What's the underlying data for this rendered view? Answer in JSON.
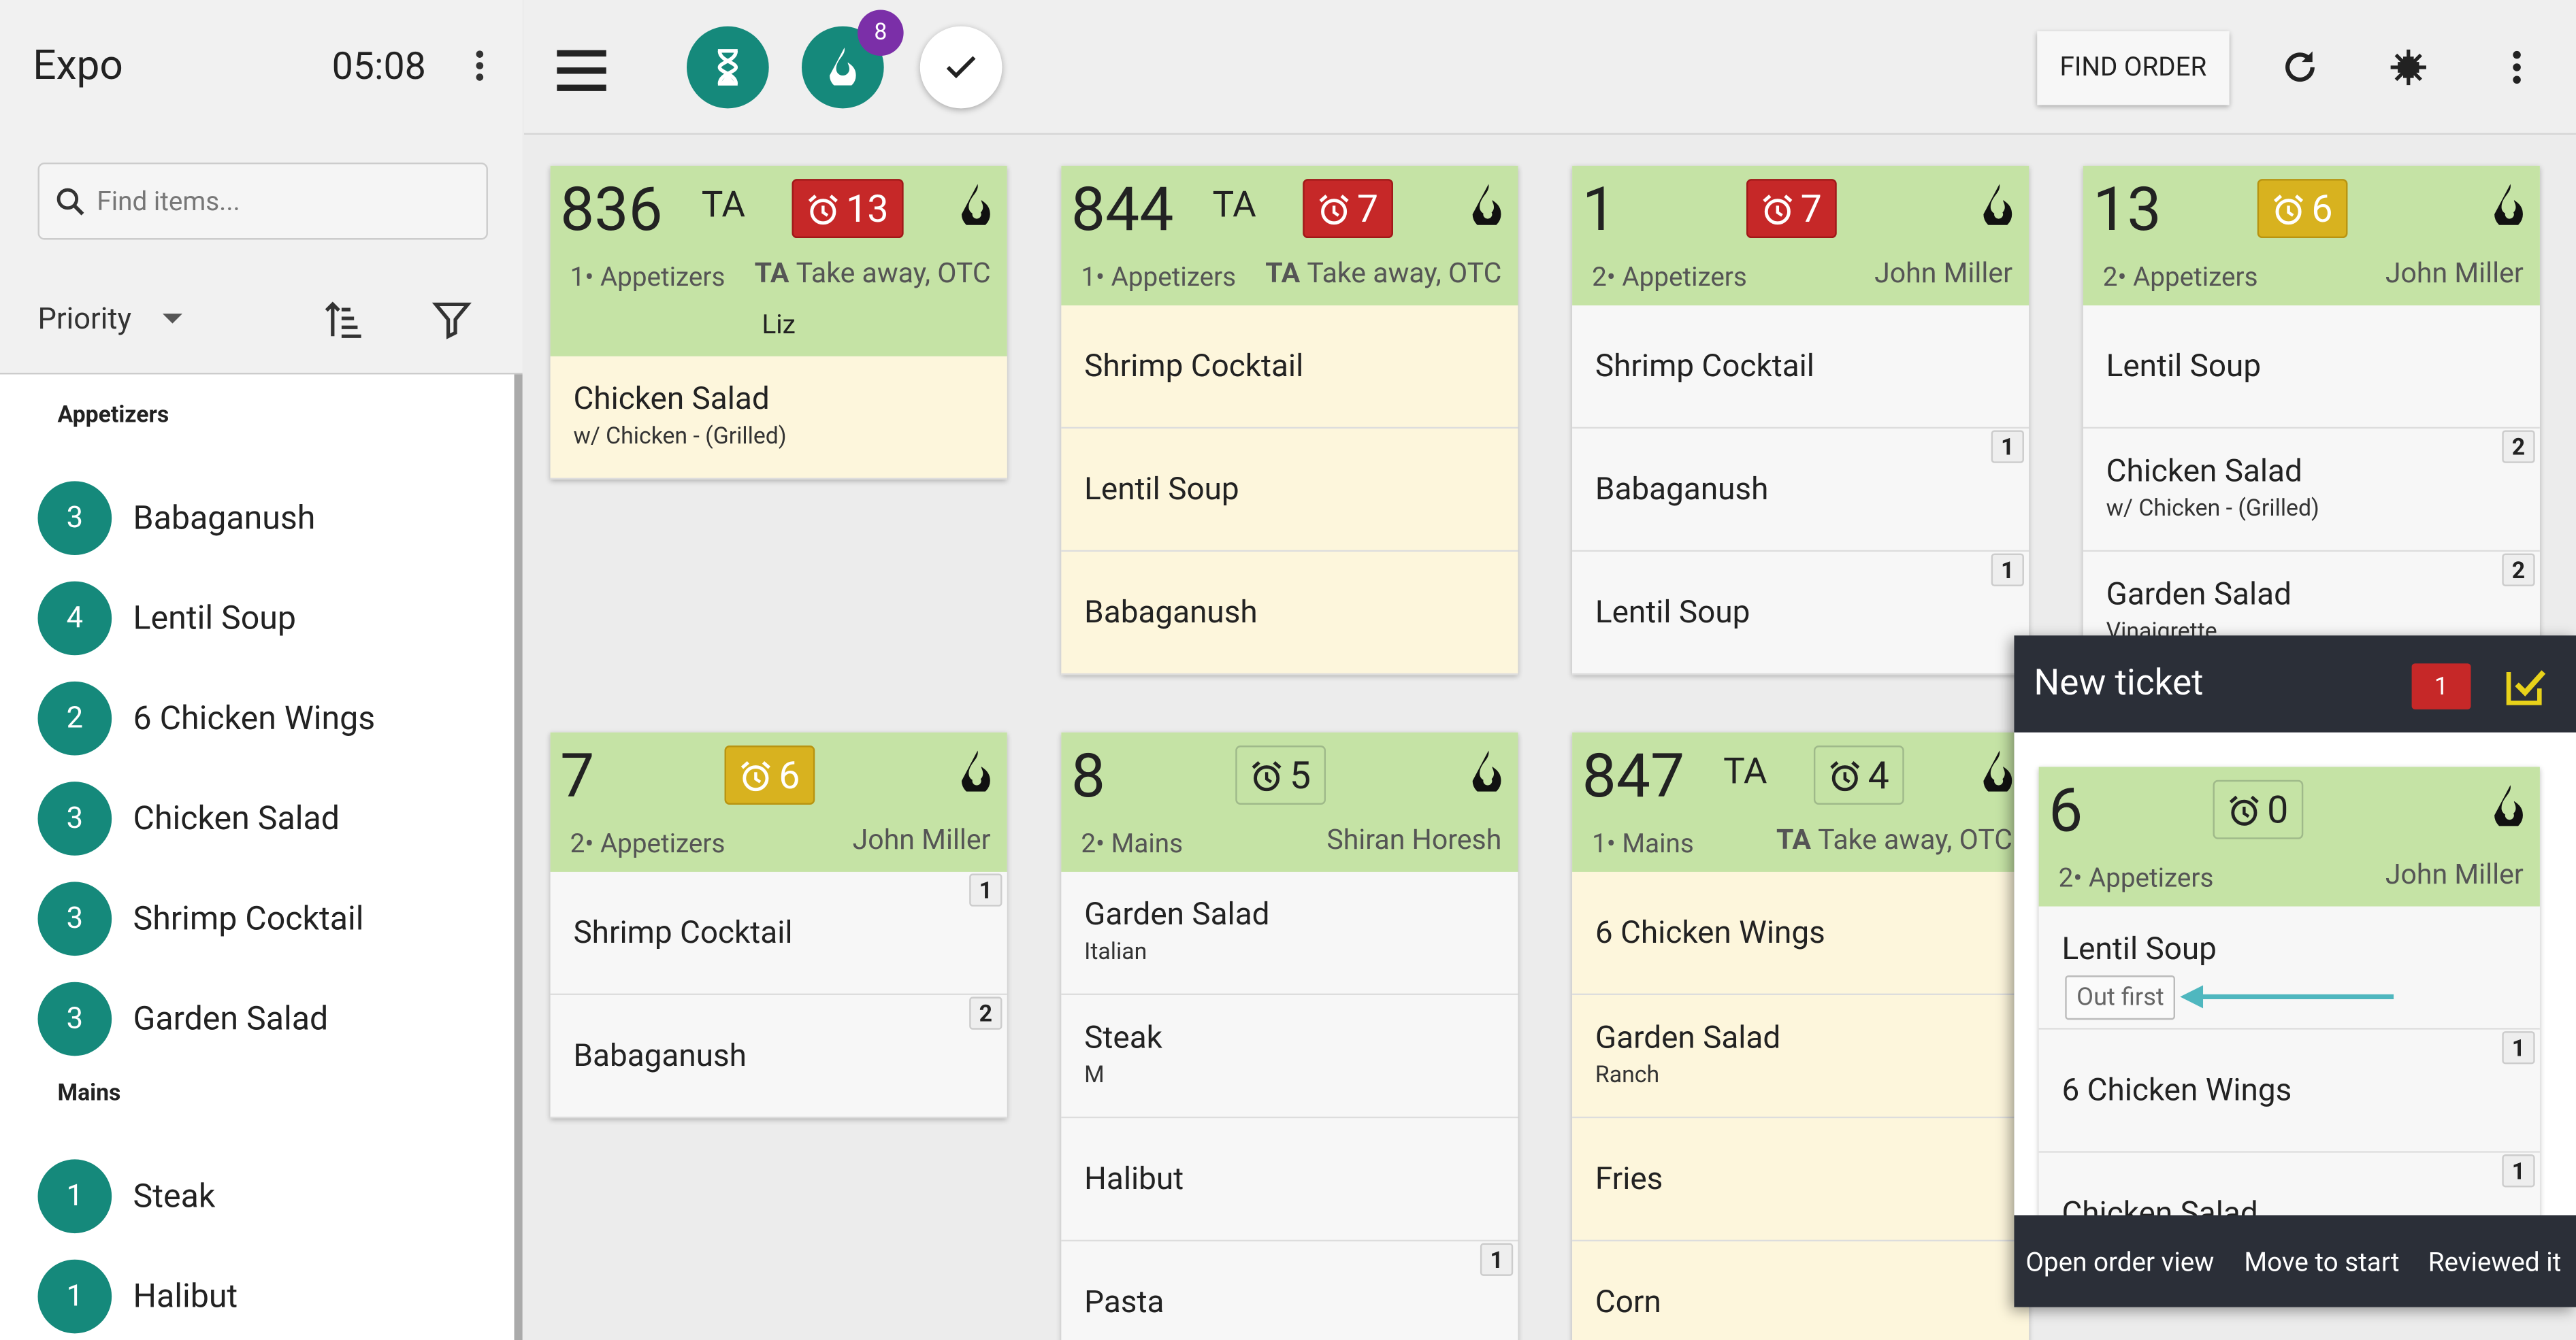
{
  "sidebar": {
    "title": "Expo",
    "clock": "05:08",
    "search_placeholder": "Find items...",
    "sort_label": "Priority",
    "groups": [
      {
        "name": "Appetizers",
        "items": [
          {
            "count": 3,
            "name": "Babaganush"
          },
          {
            "count": 4,
            "name": "Lentil Soup"
          },
          {
            "count": 2,
            "name": "6 Chicken Wings"
          },
          {
            "count": 3,
            "name": "Chicken Salad"
          },
          {
            "count": 3,
            "name": "Shrimp Cocktail"
          },
          {
            "count": 3,
            "name": "Garden Salad"
          }
        ]
      },
      {
        "name": "Mains",
        "items": [
          {
            "count": 1,
            "name": "Steak"
          },
          {
            "count": 1,
            "name": "Halibut"
          }
        ]
      }
    ]
  },
  "toolbar": {
    "fire_badge": 8,
    "find_order": "FIND ORDER"
  },
  "tickets": [
    {
      "number": "836",
      "tag": "TA",
      "timer": 13,
      "timer_state": "red",
      "course": "1• Appetizers",
      "dest_code": "TA",
      "dest": "Take away, OTC",
      "server": "Liz",
      "theme": "pending",
      "items": [
        {
          "name": "Chicken Salad",
          "mod": "w/ Chicken - (Grilled)"
        }
      ]
    },
    {
      "number": "844",
      "tag": "TA",
      "timer": 7,
      "timer_state": "red",
      "course": "1• Appetizers",
      "dest_code": "TA",
      "dest": "Take away, OTC",
      "theme": "pending",
      "items": [
        {
          "name": "Shrimp Cocktail"
        },
        {
          "name": "Lentil Soup"
        },
        {
          "name": "Babaganush"
        }
      ]
    },
    {
      "number": "1",
      "timer": 7,
      "timer_state": "red",
      "course": "2• Appetizers",
      "guest": "John Miller",
      "theme": "plain",
      "items": [
        {
          "name": "Shrimp Cocktail"
        },
        {
          "name": "Babaganush",
          "qty": 1
        },
        {
          "name": "Lentil Soup",
          "qty": 1
        }
      ]
    },
    {
      "number": "13",
      "timer": 6,
      "timer_state": "amber",
      "course": "2• Appetizers",
      "guest": "John Miller",
      "theme": "plain",
      "items": [
        {
          "name": "Lentil Soup"
        },
        {
          "name": "Chicken Salad",
          "mod": "w/ Chicken - (Grilled)",
          "qty": 2
        },
        {
          "name": "Garden Salad",
          "mod": "Vinaigrette",
          "qty": 2
        }
      ]
    },
    {
      "number": "7",
      "timer": 6,
      "timer_state": "amber",
      "course": "2• Appetizers",
      "guest": "John Miller",
      "theme": "plain",
      "items": [
        {
          "name": "Shrimp Cocktail",
          "qty": 1
        },
        {
          "name": "Babaganush",
          "qty": 2
        }
      ]
    },
    {
      "number": "8",
      "timer": 5,
      "timer_state": "normal",
      "course": "2• Mains",
      "guest": "Shiran Horesh",
      "theme": "plain",
      "items": [
        {
          "name": "Garden Salad",
          "mod": "Italian"
        },
        {
          "name": "Steak",
          "mod": "M"
        },
        {
          "name": "Halibut"
        },
        {
          "name": "Pasta",
          "qty": 1
        }
      ]
    },
    {
      "number": "847",
      "tag": "TA",
      "timer": 4,
      "timer_state": "normal",
      "course": "1• Mains",
      "dest_code": "TA",
      "dest": "Take away, OTC",
      "theme": "pending",
      "items": [
        {
          "name": "6 Chicken Wings"
        },
        {
          "name": "Garden Salad",
          "mod": "Ranch"
        },
        {
          "name": "Fries"
        },
        {
          "name": "Corn"
        }
      ]
    }
  ],
  "popup": {
    "title": "New ticket",
    "count": 1,
    "ticket": {
      "number": "6",
      "timer": 0,
      "timer_state": "normal",
      "course": "2• Appetizers",
      "guest": "John Miller",
      "theme": "plain",
      "items": [
        {
          "name": "Lentil Soup",
          "tag": "Out first"
        },
        {
          "name": "6 Chicken Wings",
          "qty": 1
        },
        {
          "name": "Chicken Salad",
          "qty": 1
        }
      ]
    },
    "actions": [
      "Open order view",
      "Move to start",
      "Reviewed it"
    ]
  }
}
